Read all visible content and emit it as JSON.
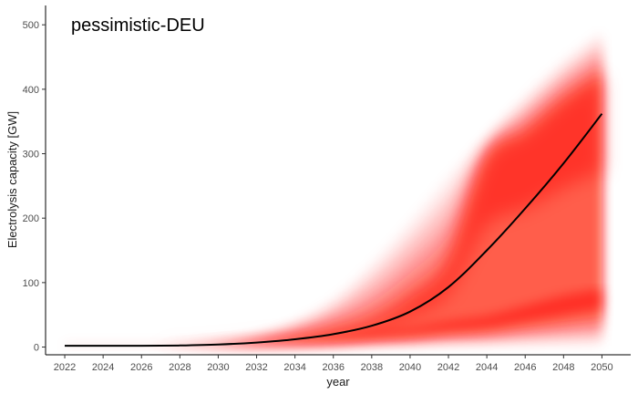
{
  "chart_data": {
    "type": "area",
    "title": "pessimistic-DEU",
    "xlabel": "year",
    "ylabel": "Electrolysis capacity [GW]",
    "xlim": [
      2021,
      2051.5
    ],
    "ylim": [
      -12,
      530
    ],
    "x_ticks": [
      2022,
      2024,
      2026,
      2028,
      2030,
      2032,
      2034,
      2036,
      2038,
      2040,
      2042,
      2044,
      2046,
      2048,
      2050
    ],
    "y_ticks": [
      0,
      100,
      200,
      300,
      400,
      500
    ],
    "grid": false,
    "legend": "none",
    "colors": {
      "band": "#ff0000",
      "median_line": "#000000",
      "axis": "#000000"
    },
    "series": [
      {
        "name": "",
        "x": [
          2022,
          2024,
          2026,
          2028,
          2030,
          2032,
          2034,
          2036,
          2038,
          2040,
          2042,
          2044,
          2046,
          2048,
          2050
        ],
        "upper": [
          2,
          2,
          2,
          3,
          8,
          18,
          40,
          75,
          130,
          195,
          265,
          330,
          390,
          445,
          490
        ],
        "lower": [
          2,
          2,
          2,
          2,
          2,
          2,
          2,
          2,
          2,
          2,
          2,
          2,
          2,
          2,
          2
        ],
        "dense_upper": [
          2,
          2,
          2,
          3,
          5,
          9,
          15,
          25,
          40,
          75,
          130,
          290,
          330,
          380,
          420
        ],
        "dense_lower": [
          2,
          2,
          2,
          2,
          3,
          4,
          6,
          9,
          14,
          18,
          25,
          30,
          40,
          50,
          60
        ],
        "median": [
          2,
          2,
          2,
          2.5,
          4,
          7,
          12,
          20,
          33,
          55,
          93,
          150,
          215,
          285,
          362
        ]
      }
    ]
  }
}
